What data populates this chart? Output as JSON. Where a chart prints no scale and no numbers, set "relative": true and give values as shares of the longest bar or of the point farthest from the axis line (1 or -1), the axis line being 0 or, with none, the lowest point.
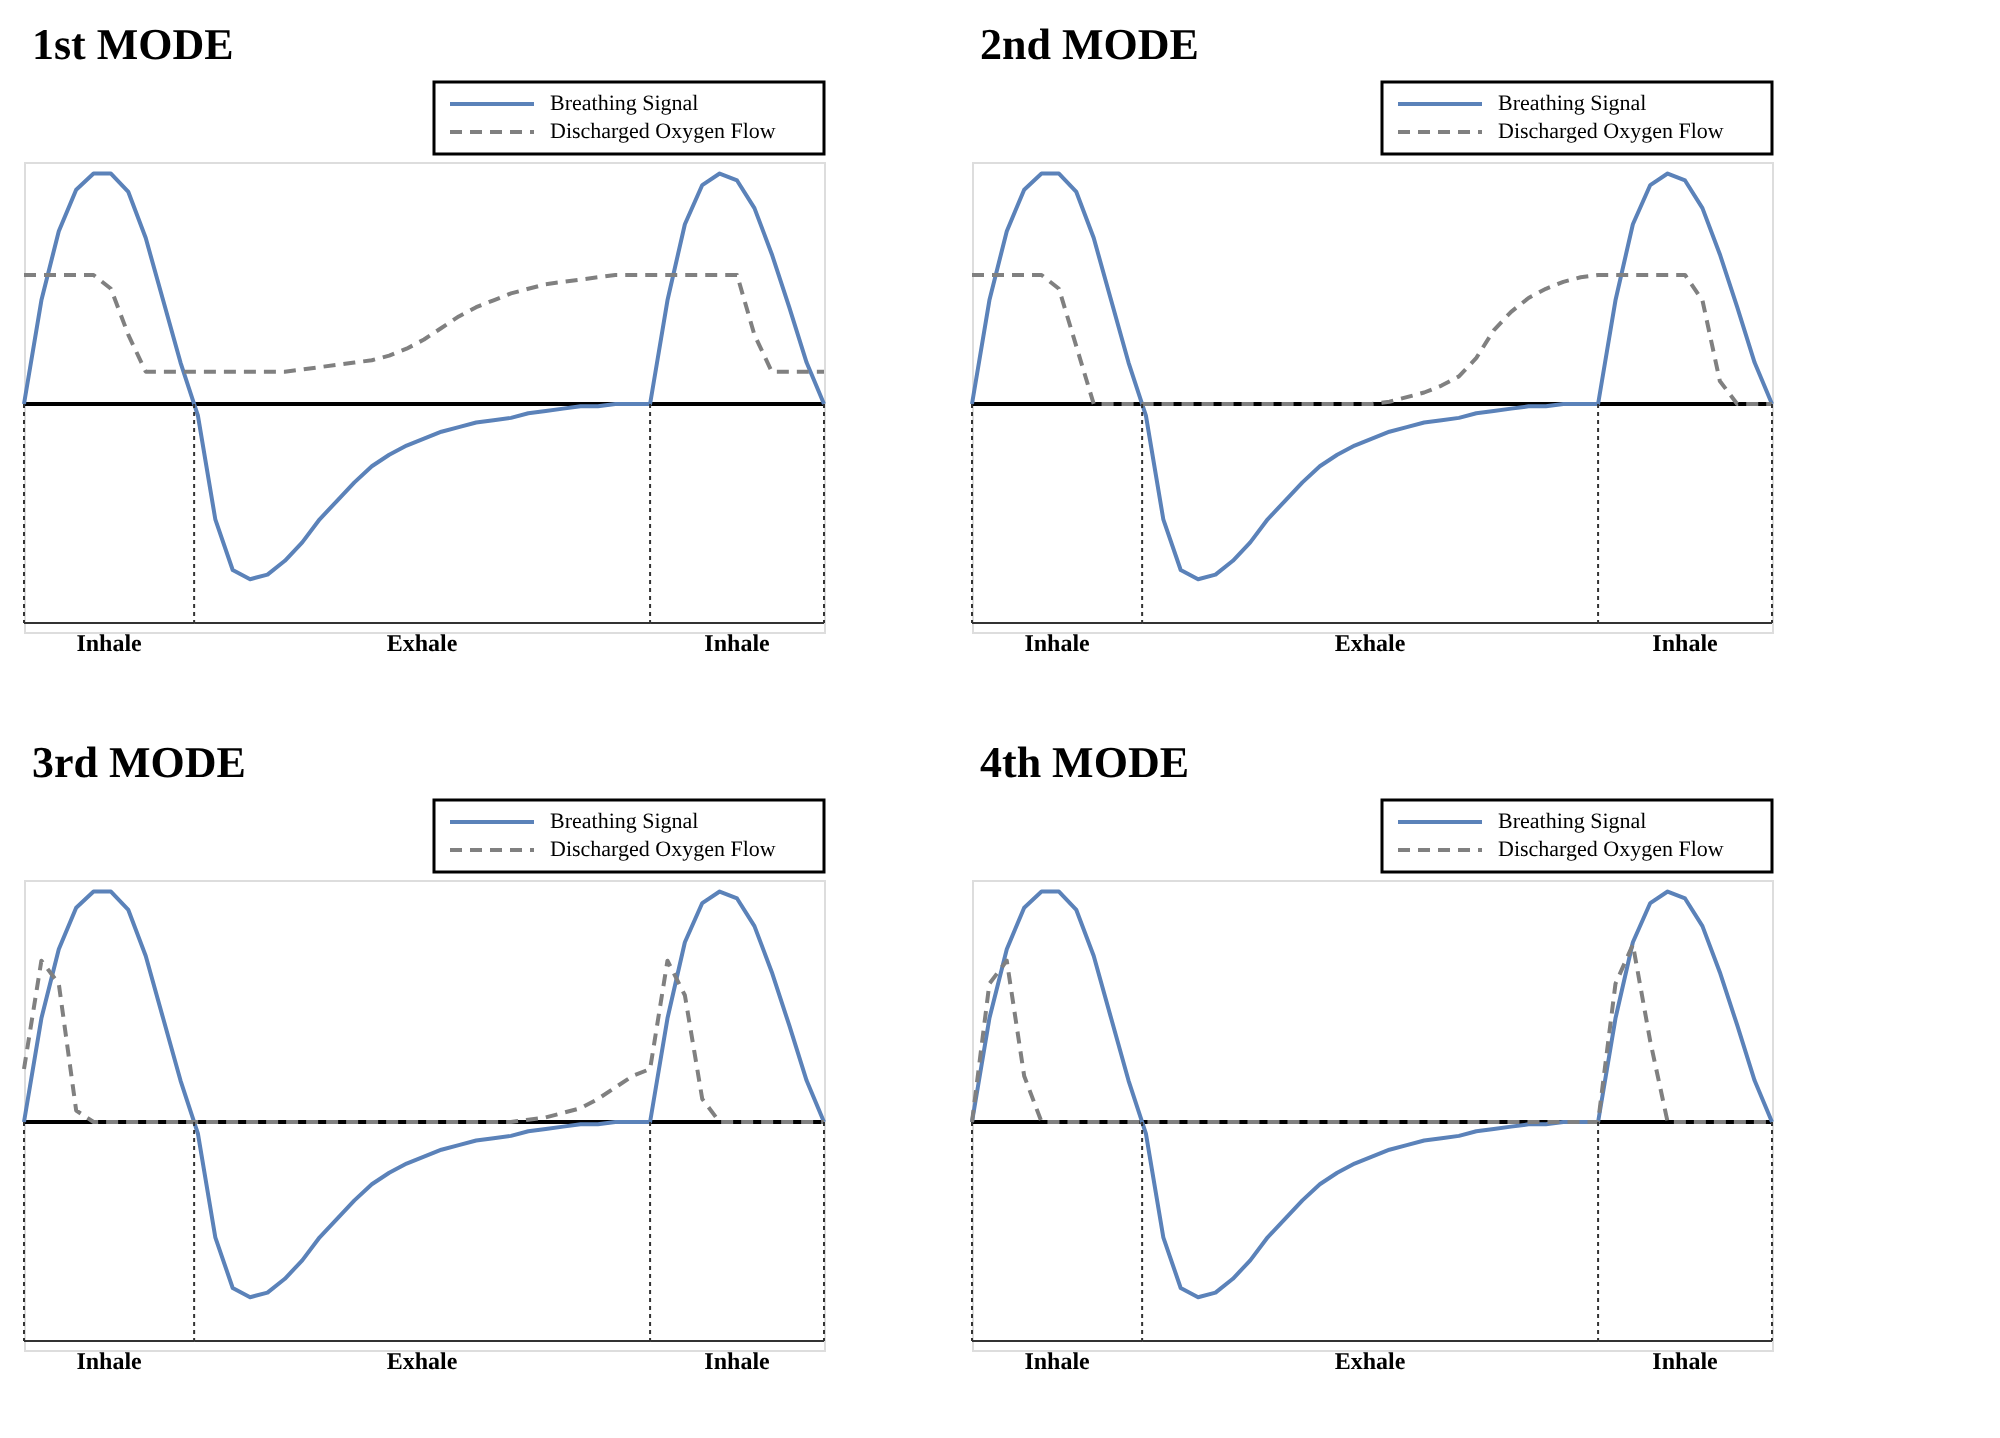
{
  "chart_data": [
    {
      "type": "line",
      "title": "1st MODE",
      "relative": true,
      "legend": "top right",
      "categories": [
        null,
        null,
        null,
        null,
        null,
        null,
        null,
        null,
        null,
        null,
        null,
        null,
        null,
        null,
        null,
        null,
        null,
        null,
        null,
        null,
        null,
        null,
        null,
        null,
        null,
        null,
        null,
        null,
        null,
        null,
        null,
        null,
        null,
        null,
        null,
        null,
        null,
        null,
        null,
        null,
        null,
        null,
        null,
        null,
        null,
        null,
        null
      ],
      "series": [
        {
          "name": "Breathing Signal",
          "color": "#5b82b9",
          "line_style": "solid",
          "values": [
            0,
            0.45,
            0.75,
            0.93,
            1,
            1,
            0.92,
            0.72,
            0.45,
            0.18,
            -0.05,
            -0.5,
            -0.72,
            -0.76,
            -0.74,
            -0.68,
            -0.6,
            -0.5,
            -0.42,
            -0.34,
            -0.27,
            -0.22,
            -0.18,
            -0.15,
            -0.12,
            -0.1,
            -0.08,
            -0.07,
            -0.06,
            -0.04,
            -0.03,
            -0.02,
            -0.01,
            -0.01,
            0,
            0,
            0,
            0.45,
            0.78,
            0.95,
            1,
            0.97,
            0.85,
            0.65,
            0.42,
            0.18,
            0
          ]
        },
        {
          "name": "Discharged Oxygen Flow",
          "color": "#808080",
          "line_style": "dashed",
          "values": [
            0.56,
            0.56,
            0.56,
            0.56,
            0.56,
            0.5,
            0.3,
            0.14,
            0.14,
            0.14,
            0.14,
            0.14,
            0.14,
            0.14,
            0.14,
            0.14,
            0.15,
            0.16,
            0.17,
            0.18,
            0.19,
            0.21,
            0.24,
            0.28,
            0.33,
            0.38,
            0.42,
            0.45,
            0.48,
            0.5,
            0.52,
            0.53,
            0.54,
            0.55,
            0.56,
            0.56,
            0.56,
            0.56,
            0.56,
            0.56,
            0.56,
            0.56,
            0.3,
            0.14,
            0.14,
            0.14,
            0.14
          ]
        }
      ],
      "annotations": [
        "Inhale",
        "Exhale",
        "Inhale"
      ]
    },
    {
      "type": "line",
      "title": "2nd MODE",
      "relative": true,
      "legend": "top right",
      "categories": [
        null,
        null,
        null,
        null,
        null,
        null,
        null,
        null,
        null,
        null,
        null,
        null,
        null,
        null,
        null,
        null,
        null,
        null,
        null,
        null,
        null,
        null,
        null,
        null,
        null,
        null,
        null,
        null,
        null,
        null,
        null,
        null,
        null,
        null,
        null,
        null,
        null,
        null,
        null,
        null,
        null,
        null,
        null,
        null,
        null,
        null,
        null
      ],
      "series": [
        {
          "name": "Breathing Signal",
          "color": "#5b82b9",
          "line_style": "solid",
          "values": [
            0,
            0.45,
            0.75,
            0.93,
            1,
            1,
            0.92,
            0.72,
            0.45,
            0.18,
            -0.05,
            -0.5,
            -0.72,
            -0.76,
            -0.74,
            -0.68,
            -0.6,
            -0.5,
            -0.42,
            -0.34,
            -0.27,
            -0.22,
            -0.18,
            -0.15,
            -0.12,
            -0.1,
            -0.08,
            -0.07,
            -0.06,
            -0.04,
            -0.03,
            -0.02,
            -0.01,
            -0.01,
            0,
            0,
            0,
            0.45,
            0.78,
            0.95,
            1,
            0.97,
            0.85,
            0.65,
            0.42,
            0.18,
            0
          ]
        },
        {
          "name": "Discharged Oxygen Flow",
          "color": "#808080",
          "line_style": "dashed",
          "values": [
            0.56,
            0.56,
            0.56,
            0.56,
            0.56,
            0.5,
            0.25,
            0,
            0,
            0,
            0,
            0,
            0,
            0,
            0,
            0,
            0,
            0,
            0,
            0,
            0,
            0,
            0,
            0,
            0.01,
            0.03,
            0.05,
            0.08,
            0.12,
            0.2,
            0.32,
            0.4,
            0.46,
            0.5,
            0.53,
            0.55,
            0.56,
            0.56,
            0.56,
            0.56,
            0.56,
            0.56,
            0.45,
            0.1,
            0,
            0,
            0
          ]
        }
      ],
      "annotations": [
        "Inhale",
        "Exhale",
        "Inhale"
      ]
    },
    {
      "type": "line",
      "title": "3rd MODE",
      "relative": true,
      "legend": "top right",
      "categories": [
        null,
        null,
        null,
        null,
        null,
        null,
        null,
        null,
        null,
        null,
        null,
        null,
        null,
        null,
        null,
        null,
        null,
        null,
        null,
        null,
        null,
        null,
        null,
        null,
        null,
        null,
        null,
        null,
        null,
        null,
        null,
        null,
        null,
        null,
        null,
        null,
        null,
        null,
        null,
        null,
        null,
        null,
        null,
        null,
        null,
        null,
        null
      ],
      "series": [
        {
          "name": "Breathing Signal",
          "color": "#5b82b9",
          "line_style": "solid",
          "values": [
            0,
            0.45,
            0.75,
            0.93,
            1,
            1,
            0.92,
            0.72,
            0.45,
            0.18,
            -0.05,
            -0.5,
            -0.72,
            -0.76,
            -0.74,
            -0.68,
            -0.6,
            -0.5,
            -0.42,
            -0.34,
            -0.27,
            -0.22,
            -0.18,
            -0.15,
            -0.12,
            -0.1,
            -0.08,
            -0.07,
            -0.06,
            -0.04,
            -0.03,
            -0.02,
            -0.01,
            -0.01,
            0,
            0,
            0,
            0.45,
            0.78,
            0.95,
            1,
            0.97,
            0.85,
            0.65,
            0.42,
            0.18,
            0
          ]
        },
        {
          "name": "Discharged Oxygen Flow",
          "color": "#808080",
          "line_style": "dashed",
          "values": [
            0.23,
            0.7,
            0.6,
            0.05,
            0,
            0,
            0,
            0,
            0,
            0,
            0,
            0,
            0,
            0,
            0,
            0,
            0,
            0,
            0,
            0,
            0,
            0,
            0,
            0,
            0,
            0,
            0,
            0,
            0,
            0.01,
            0.02,
            0.04,
            0.06,
            0.1,
            0.15,
            0.2,
            0.23,
            0.7,
            0.55,
            0.1,
            0,
            0,
            0,
            0,
            0,
            0,
            0
          ]
        }
      ],
      "annotations": [
        "Inhale",
        "Exhale",
        "Inhale"
      ]
    },
    {
      "type": "line",
      "title": "4th MODE",
      "relative": true,
      "legend": "top right",
      "categories": [
        null,
        null,
        null,
        null,
        null,
        null,
        null,
        null,
        null,
        null,
        null,
        null,
        null,
        null,
        null,
        null,
        null,
        null,
        null,
        null,
        null,
        null,
        null,
        null,
        null,
        null,
        null,
        null,
        null,
        null,
        null,
        null,
        null,
        null,
        null,
        null,
        null,
        null,
        null,
        null,
        null,
        null,
        null,
        null,
        null,
        null,
        null
      ],
      "series": [
        {
          "name": "Breathing Signal",
          "color": "#5b82b9",
          "line_style": "solid",
          "values": [
            0,
            0.45,
            0.75,
            0.93,
            1,
            1,
            0.92,
            0.72,
            0.45,
            0.18,
            -0.05,
            -0.5,
            -0.72,
            -0.76,
            -0.74,
            -0.68,
            -0.6,
            -0.5,
            -0.42,
            -0.34,
            -0.27,
            -0.22,
            -0.18,
            -0.15,
            -0.12,
            -0.1,
            -0.08,
            -0.07,
            -0.06,
            -0.04,
            -0.03,
            -0.02,
            -0.01,
            -0.01,
            0,
            0,
            0,
            0.45,
            0.78,
            0.95,
            1,
            0.97,
            0.85,
            0.65,
            0.42,
            0.18,
            0
          ]
        },
        {
          "name": "Discharged Oxygen Flow",
          "color": "#808080",
          "line_style": "dashed",
          "values": [
            0,
            0.6,
            0.7,
            0.2,
            0,
            0,
            0,
            0,
            0,
            0,
            0,
            0,
            0,
            0,
            0,
            0,
            0,
            0,
            0,
            0,
            0,
            0,
            0,
            0,
            0,
            0,
            0,
            0,
            0,
            0,
            0,
            0,
            0,
            0,
            0,
            0,
            0,
            0.6,
            0.77,
            0.35,
            0,
            0,
            0,
            0,
            0,
            0,
            0
          ]
        }
      ],
      "annotations": [
        "Inhale",
        "Exhale",
        "Inhale"
      ]
    }
  ]
}
